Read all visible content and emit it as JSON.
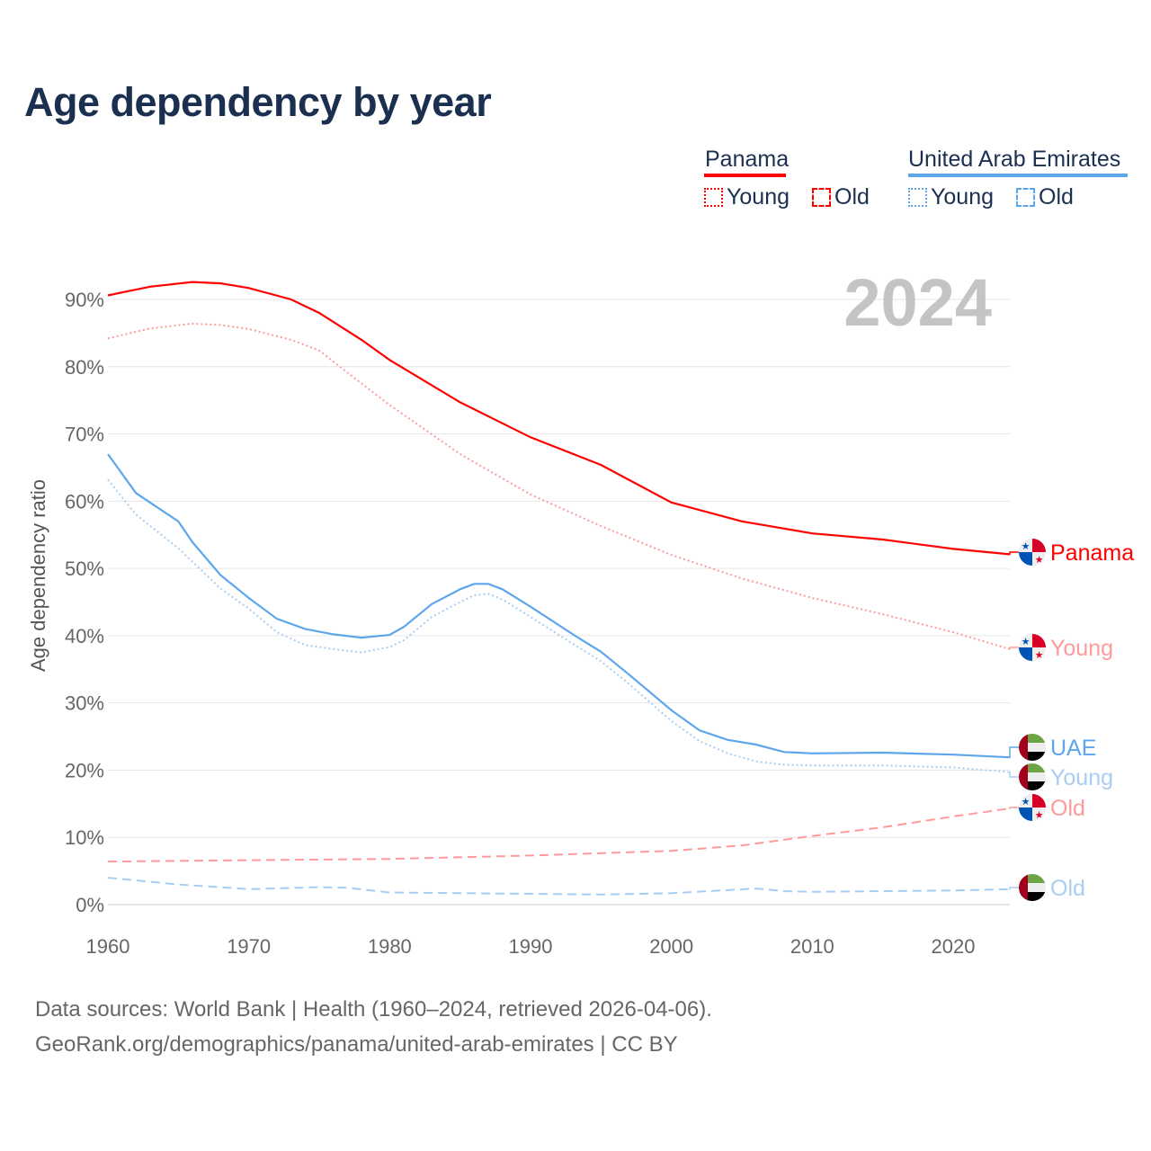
{
  "title": "Age dependency by year",
  "legend": {
    "countries": [
      {
        "name": "Panama",
        "color": "#ff0000",
        "young_label": "Young",
        "old_label": "Old"
      },
      {
        "name": "United Arab Emirates",
        "color": "#5ea6ec",
        "young_label": "Young",
        "old_label": "Old"
      }
    ]
  },
  "year_watermark": "2024",
  "source_line_1": "Data sources: World Bank | Health (1960–2024, retrieved 2026-04-06).",
  "source_line_2": "GeoRank.org/demographics/panama/united-arab-emirates | CC BY",
  "chart_data": {
    "type": "line",
    "title": "Age dependency by year",
    "xlabel": "",
    "ylabel": "Age dependency ratio",
    "xlim": [
      1960,
      2024
    ],
    "ylim": [
      0,
      90
    ],
    "x_ticks": [
      "1960",
      "1970",
      "1980",
      "1990",
      "2000",
      "2010",
      "2020"
    ],
    "y_ticks": [
      "0%",
      "10%",
      "20%",
      "30%",
      "40%",
      "50%",
      "60%",
      "70%",
      "80%",
      "90%"
    ],
    "grid": true,
    "series": [
      {
        "name": "Panama",
        "end_label": "Panama",
        "country": "panama",
        "style": "solid",
        "color": "#ff0000",
        "x": [
          1960,
          1963,
          1966,
          1968,
          1970,
          1973,
          1975,
          1978,
          1980,
          1985,
          1990,
          1995,
          2000,
          2005,
          2010,
          2015,
          2020,
          2024
        ],
        "values": [
          90.6,
          91.9,
          92.6,
          92.4,
          91.7,
          90.0,
          88.0,
          84.0,
          81.0,
          74.7,
          69.5,
          65.4,
          59.8,
          57.0,
          55.2,
          54.3,
          52.9,
          52.1
        ]
      },
      {
        "name": "Panama Young",
        "end_label": "Young",
        "country": "panama",
        "style": "dotted",
        "color": "#ff9a9a",
        "x": [
          1960,
          1963,
          1966,
          1968,
          1970,
          1973,
          1975,
          1978,
          1980,
          1985,
          1990,
          1995,
          2000,
          2005,
          2010,
          2015,
          2020,
          2024
        ],
        "values": [
          84.2,
          85.7,
          86.4,
          86.2,
          85.6,
          84.0,
          82.4,
          77.5,
          74.3,
          67.0,
          61.0,
          56.3,
          52.0,
          48.5,
          45.6,
          43.2,
          40.5,
          38.0
        ]
      },
      {
        "name": "UAE",
        "end_label": "UAE",
        "country": "uae",
        "style": "solid",
        "color": "#5ea6ec",
        "x": [
          1960,
          1962,
          1965,
          1966,
          1968,
          1970,
          1972,
          1974,
          1976,
          1978,
          1980,
          1981,
          1983,
          1985,
          1986,
          1987,
          1988,
          1990,
          1993,
          1995,
          1997,
          2000,
          2002,
          2004,
          2006,
          2008,
          2010,
          2015,
          2020,
          2024
        ],
        "values": [
          67.0,
          61.2,
          57.0,
          53.9,
          49.0,
          45.6,
          42.5,
          41.0,
          40.2,
          39.7,
          40.1,
          41.3,
          44.7,
          46.9,
          47.7,
          47.7,
          46.9,
          44.3,
          40.2,
          37.6,
          34.2,
          28.9,
          25.9,
          24.5,
          23.8,
          22.7,
          22.5,
          22.6,
          22.3,
          21.9
        ]
      },
      {
        "name": "UAE Young",
        "end_label": "Young",
        "country": "uae",
        "style": "dotted",
        "color": "#a8cdf3",
        "x": [
          1960,
          1962,
          1965,
          1966,
          1968,
          1970,
          1972,
          1974,
          1976,
          1978,
          1980,
          1981,
          1983,
          1985,
          1986,
          1987,
          1988,
          1990,
          1993,
          1995,
          1997,
          2000,
          2002,
          2004,
          2006,
          2008,
          2010,
          2015,
          2020,
          2024
        ],
        "values": [
          63.2,
          58.0,
          53.0,
          51.0,
          47.0,
          44.0,
          40.5,
          38.6,
          38.0,
          37.5,
          38.3,
          39.3,
          42.8,
          45.0,
          46.0,
          46.2,
          45.4,
          42.8,
          38.8,
          36.2,
          32.8,
          27.3,
          24.3,
          22.5,
          21.3,
          20.8,
          20.7,
          20.7,
          20.4,
          19.7
        ]
      },
      {
        "name": "Panama Old",
        "end_label": "Old",
        "country": "panama",
        "style": "dashed",
        "color": "#ff9a9a",
        "x": [
          1960,
          1970,
          1980,
          1990,
          2000,
          2005,
          2010,
          2015,
          2020,
          2024
        ],
        "values": [
          6.4,
          6.6,
          6.8,
          7.3,
          8.0,
          8.8,
          10.2,
          11.5,
          13.1,
          14.3
        ]
      },
      {
        "name": "UAE Old",
        "end_label": "Old",
        "country": "uae",
        "style": "dashed",
        "color": "#a8cdf3",
        "x": [
          1960,
          1965,
          1970,
          1975,
          1977,
          1980,
          1990,
          1995,
          2000,
          2006,
          2008,
          2010,
          2015,
          2020,
          2024
        ],
        "values": [
          4.0,
          3.0,
          2.3,
          2.6,
          2.5,
          1.8,
          1.6,
          1.5,
          1.7,
          2.4,
          2.0,
          1.9,
          2.0,
          2.1,
          2.3
        ]
      }
    ]
  }
}
